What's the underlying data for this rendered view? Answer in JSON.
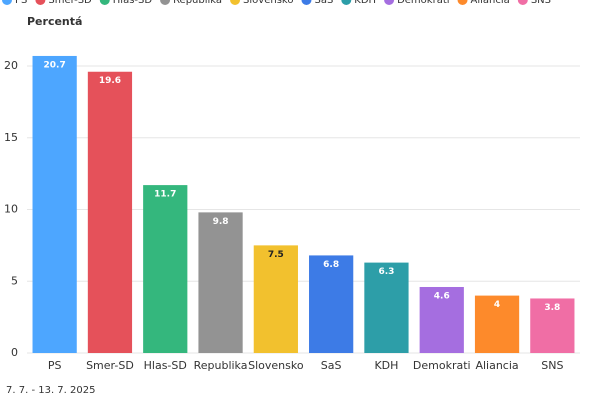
{
  "chart_data": {
    "type": "bar",
    "y_label": "Percentá",
    "footer": "7. 7. - 13. 7. 2025",
    "categories": [
      "PS",
      "Smer-SD",
      "Hlas-SD",
      "Republika",
      "Slovensko",
      "SaS",
      "KDH",
      "Demokrati",
      "Aliancia",
      "SNS"
    ],
    "values": [
      20.7,
      19.6,
      11.7,
      9.8,
      7.5,
      6.8,
      6.3,
      4.6,
      4,
      3.8
    ],
    "colors": [
      "#4da6ff",
      "#e5515a",
      "#34b77d",
      "#939393",
      "#f2c12e",
      "#3d7be6",
      "#2d9ea8",
      "#a56ee0",
      "#fd8a2b",
      "#f06ea5"
    ],
    "ylim": [
      0,
      22
    ],
    "yticks": [
      0,
      5,
      10,
      15,
      20
    ],
    "grid": true
  }
}
